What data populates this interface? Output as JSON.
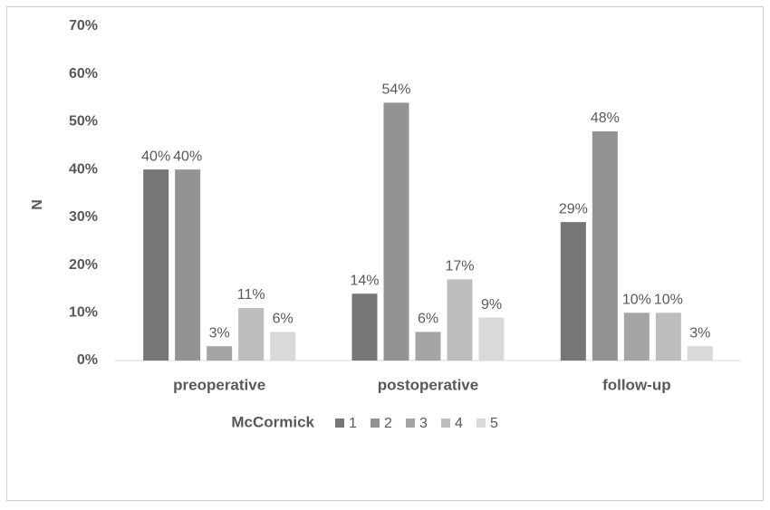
{
  "chart_data": {
    "type": "bar",
    "y_label": "N",
    "legend_title": "McCormick",
    "categories": [
      "preoperative",
      "postoperative",
      "follow-up"
    ],
    "series": [
      {
        "name": "1",
        "color": "#767676",
        "values": [
          40,
          14,
          29
        ],
        "value_labels": [
          "40%",
          "14%",
          "29%"
        ]
      },
      {
        "name": "2",
        "color": "#939393",
        "values": [
          40,
          54,
          48
        ],
        "value_labels": [
          "40%",
          "54%",
          "48%"
        ]
      },
      {
        "name": "3",
        "color": "#a5a5a5",
        "values": [
          3,
          6,
          10
        ],
        "value_labels": [
          "3%",
          "6%",
          "10%"
        ]
      },
      {
        "name": "4",
        "color": "#bdbdbd",
        "values": [
          11,
          17,
          10
        ],
        "value_labels": [
          "11%",
          "17%",
          "10%"
        ]
      },
      {
        "name": "5",
        "color": "#d9d9d9",
        "values": [
          6,
          9,
          3
        ],
        "value_labels": [
          "6%",
          "9%",
          "3%"
        ]
      }
    ],
    "ylim": [
      0,
      70
    ],
    "yticks": [
      {
        "value": 0,
        "label": "0%"
      },
      {
        "value": 10,
        "label": "10%"
      },
      {
        "value": 20,
        "label": "20%"
      },
      {
        "value": 30,
        "label": "30%"
      },
      {
        "value": 40,
        "label": "40%"
      },
      {
        "value": 50,
        "label": "50%"
      },
      {
        "value": 60,
        "label": "60%"
      },
      {
        "value": 70,
        "label": "70%"
      }
    ],
    "grid": false,
    "legend": "bottom"
  }
}
